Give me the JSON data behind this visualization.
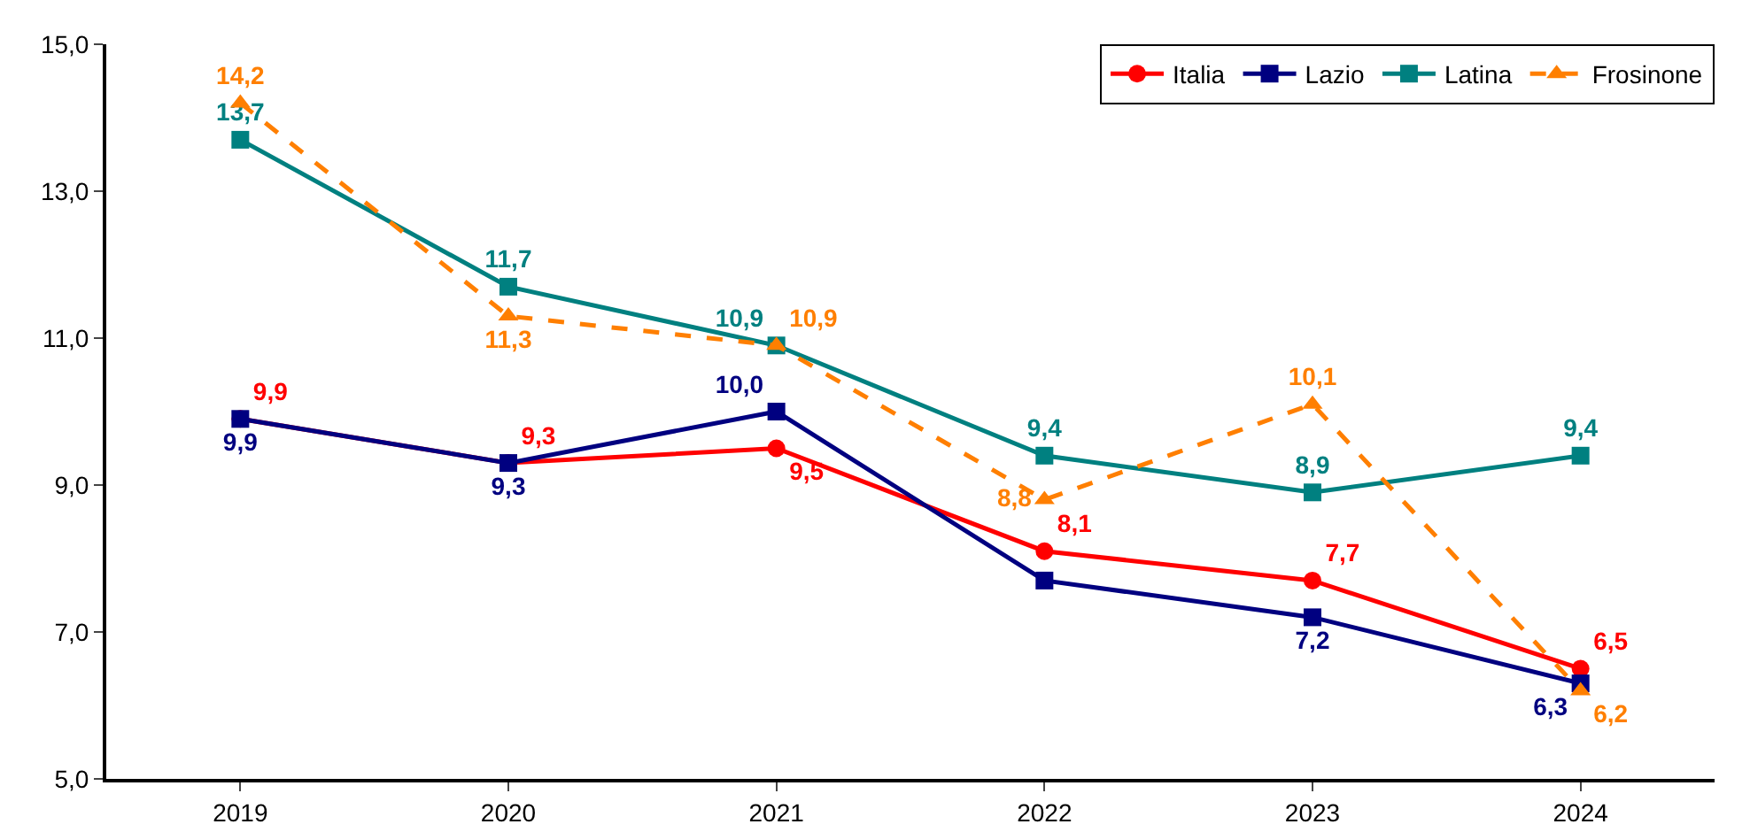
{
  "chart_data": {
    "type": "line",
    "categories": [
      "2019",
      "2020",
      "2021",
      "2022",
      "2023",
      "2024"
    ],
    "series": [
      {
        "name": "Italia",
        "color": "#ff0000",
        "marker": "circle",
        "line_style": "solid",
        "values": [
          9.9,
          9.3,
          9.5,
          8.1,
          7.7,
          6.5
        ],
        "value_labels": [
          "9,9",
          "9,3",
          "9,5",
          "8,1",
          "7,7",
          "6,5"
        ]
      },
      {
        "name": "Lazio",
        "color": "#000080",
        "marker": "square",
        "line_style": "solid",
        "values": [
          9.9,
          9.3,
          10.0,
          7.7,
          7.2,
          6.3
        ],
        "value_labels": [
          "9,9",
          "9,3",
          "10,0",
          null,
          "7,2",
          "6,3"
        ]
      },
      {
        "name": "Latina",
        "color": "#008080",
        "marker": "square",
        "line_style": "solid",
        "values": [
          13.7,
          11.7,
          10.9,
          9.4,
          8.9,
          9.4
        ],
        "value_labels": [
          "13,7",
          "11,7",
          "10,9",
          "9,4",
          "8,9",
          "9,4"
        ]
      },
      {
        "name": "Frosinone",
        "color": "#ff7f00",
        "marker": "triangle",
        "line_style": "dashed",
        "values": [
          14.2,
          11.3,
          10.9,
          8.8,
          10.1,
          6.2
        ],
        "value_labels": [
          "14,2",
          "11,3",
          "10,9",
          "8,8",
          "10,1",
          "6,2"
        ]
      }
    ],
    "ylim": [
      5,
      15
    ],
    "yticks": [
      {
        "value": 5,
        "label": "5,0"
      },
      {
        "value": 7,
        "label": "7,0"
      },
      {
        "value": 9,
        "label": "9,0"
      },
      {
        "value": 11,
        "label": "11,0"
      },
      {
        "value": 13,
        "label": "13,0"
      },
      {
        "value": 15,
        "label": "15,0"
      }
    ],
    "grid": false,
    "legend": "top right"
  }
}
